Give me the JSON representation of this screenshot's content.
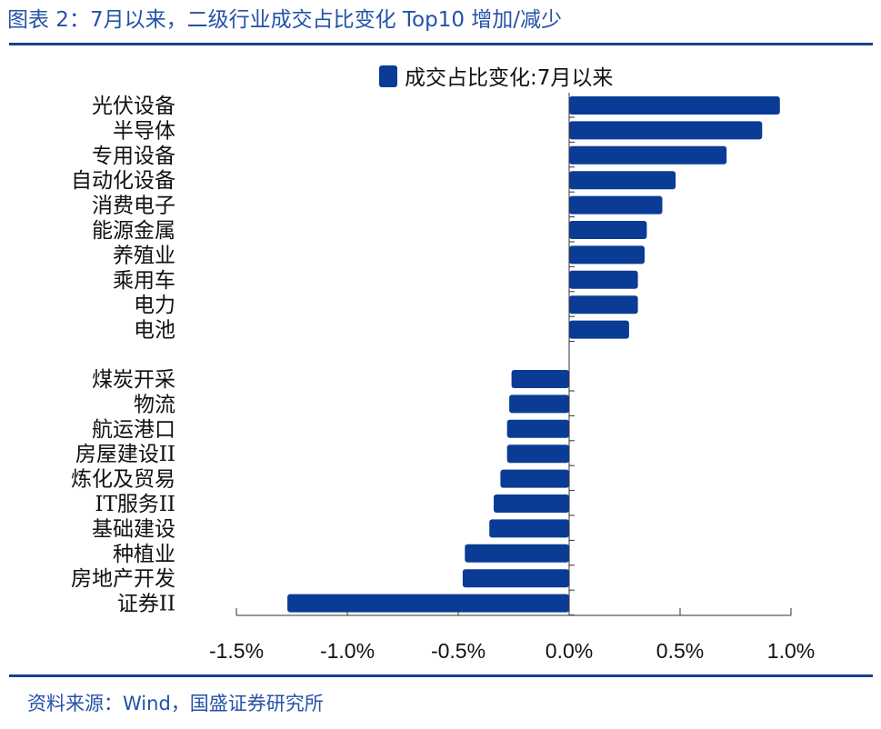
{
  "header": {
    "title": "图表 2：7月以来，二级行业成交占比变化 Top10 增加/减少"
  },
  "footer": {
    "source": "资料来源：Wind，国盛证券研究所"
  },
  "colors": {
    "bar": "#0a3c96",
    "accent": "#2452a8",
    "axis": "#333333",
    "rule": "#1f3f8e"
  },
  "chart_data": {
    "type": "bar",
    "orientation": "horizontal",
    "legend": {
      "label": "成交占比变化:7月以来",
      "position": "top-center"
    },
    "categories": [
      "光伏设备",
      "半导体",
      "专用设备",
      "自动化设备",
      "消费电子",
      "能源金属",
      "养殖业",
      "乘用车",
      "电力",
      "电池",
      "煤炭开采",
      "物流",
      "航运港口",
      "房屋建设II",
      "炼化及贸易",
      "IT服务II",
      "基础建设",
      "种植业",
      "房地产开发",
      "证券II"
    ],
    "values": [
      0.95,
      0.87,
      0.71,
      0.48,
      0.42,
      0.35,
      0.34,
      0.31,
      0.31,
      0.27,
      -0.26,
      -0.27,
      -0.28,
      -0.28,
      -0.31,
      -0.34,
      -0.36,
      -0.47,
      -0.48,
      -1.27
    ],
    "x_ticks": [
      "-1.5%",
      "-1.0%",
      "-0.5%",
      "0.0%",
      "0.5%",
      "1.0%"
    ],
    "x_tick_values": [
      -1.5,
      -1.0,
      -0.5,
      0.0,
      0.5,
      1.0
    ],
    "xlim": [
      -1.5,
      1.0
    ],
    "unit": "%",
    "grid": false
  }
}
